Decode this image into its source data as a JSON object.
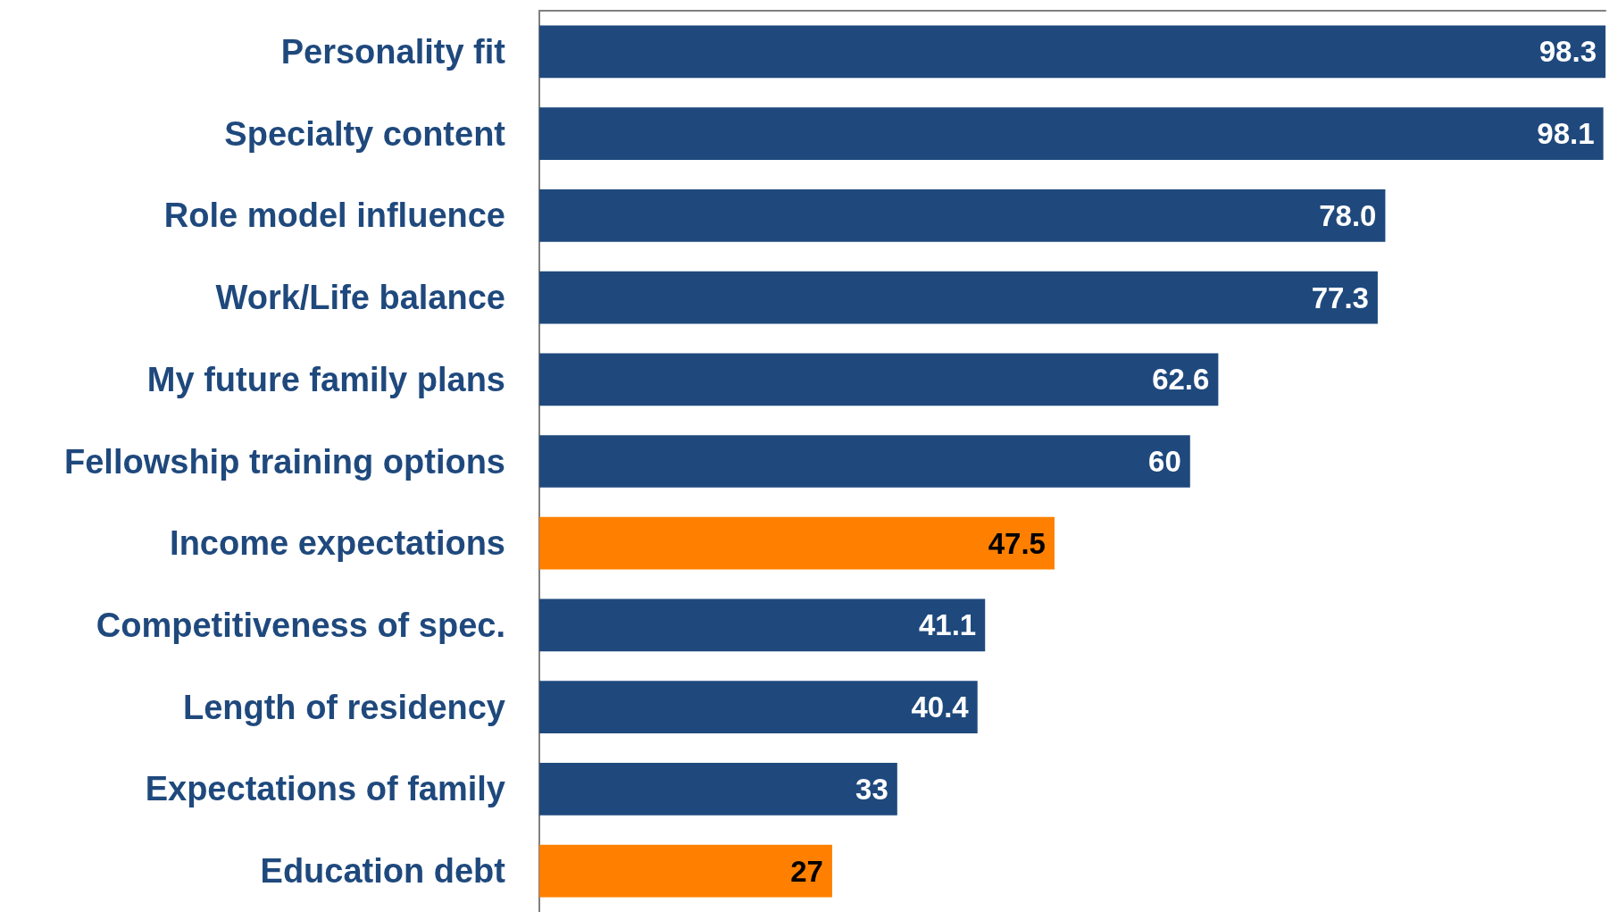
{
  "chart_data": {
    "type": "bar",
    "orientation": "horizontal",
    "categories": [
      "Personality fit",
      "Specialty content",
      "Role model influence",
      "Work/Life balance",
      "My future family plans",
      "Fellowship training options",
      "Income expectations",
      "Competitiveness of spec.",
      "Length of residency",
      "Expectations of family",
      "Education debt"
    ],
    "values": [
      98.3,
      98.1,
      78.0,
      77.3,
      62.6,
      60,
      47.5,
      41.1,
      40.4,
      33,
      27
    ],
    "value_labels": [
      "98.3",
      "98.1",
      "78.0",
      "77.3",
      "62.6",
      "60",
      "47.5",
      "41.1",
      "40.4",
      "33",
      "27"
    ],
    "colors": [
      "#1f497d",
      "#1f497d",
      "#1f497d",
      "#1f497d",
      "#1f497d",
      "#1f497d",
      "#ff8000",
      "#1f497d",
      "#1f497d",
      "#1f497d",
      "#ff8000"
    ],
    "tick_labels": "y"
  }
}
